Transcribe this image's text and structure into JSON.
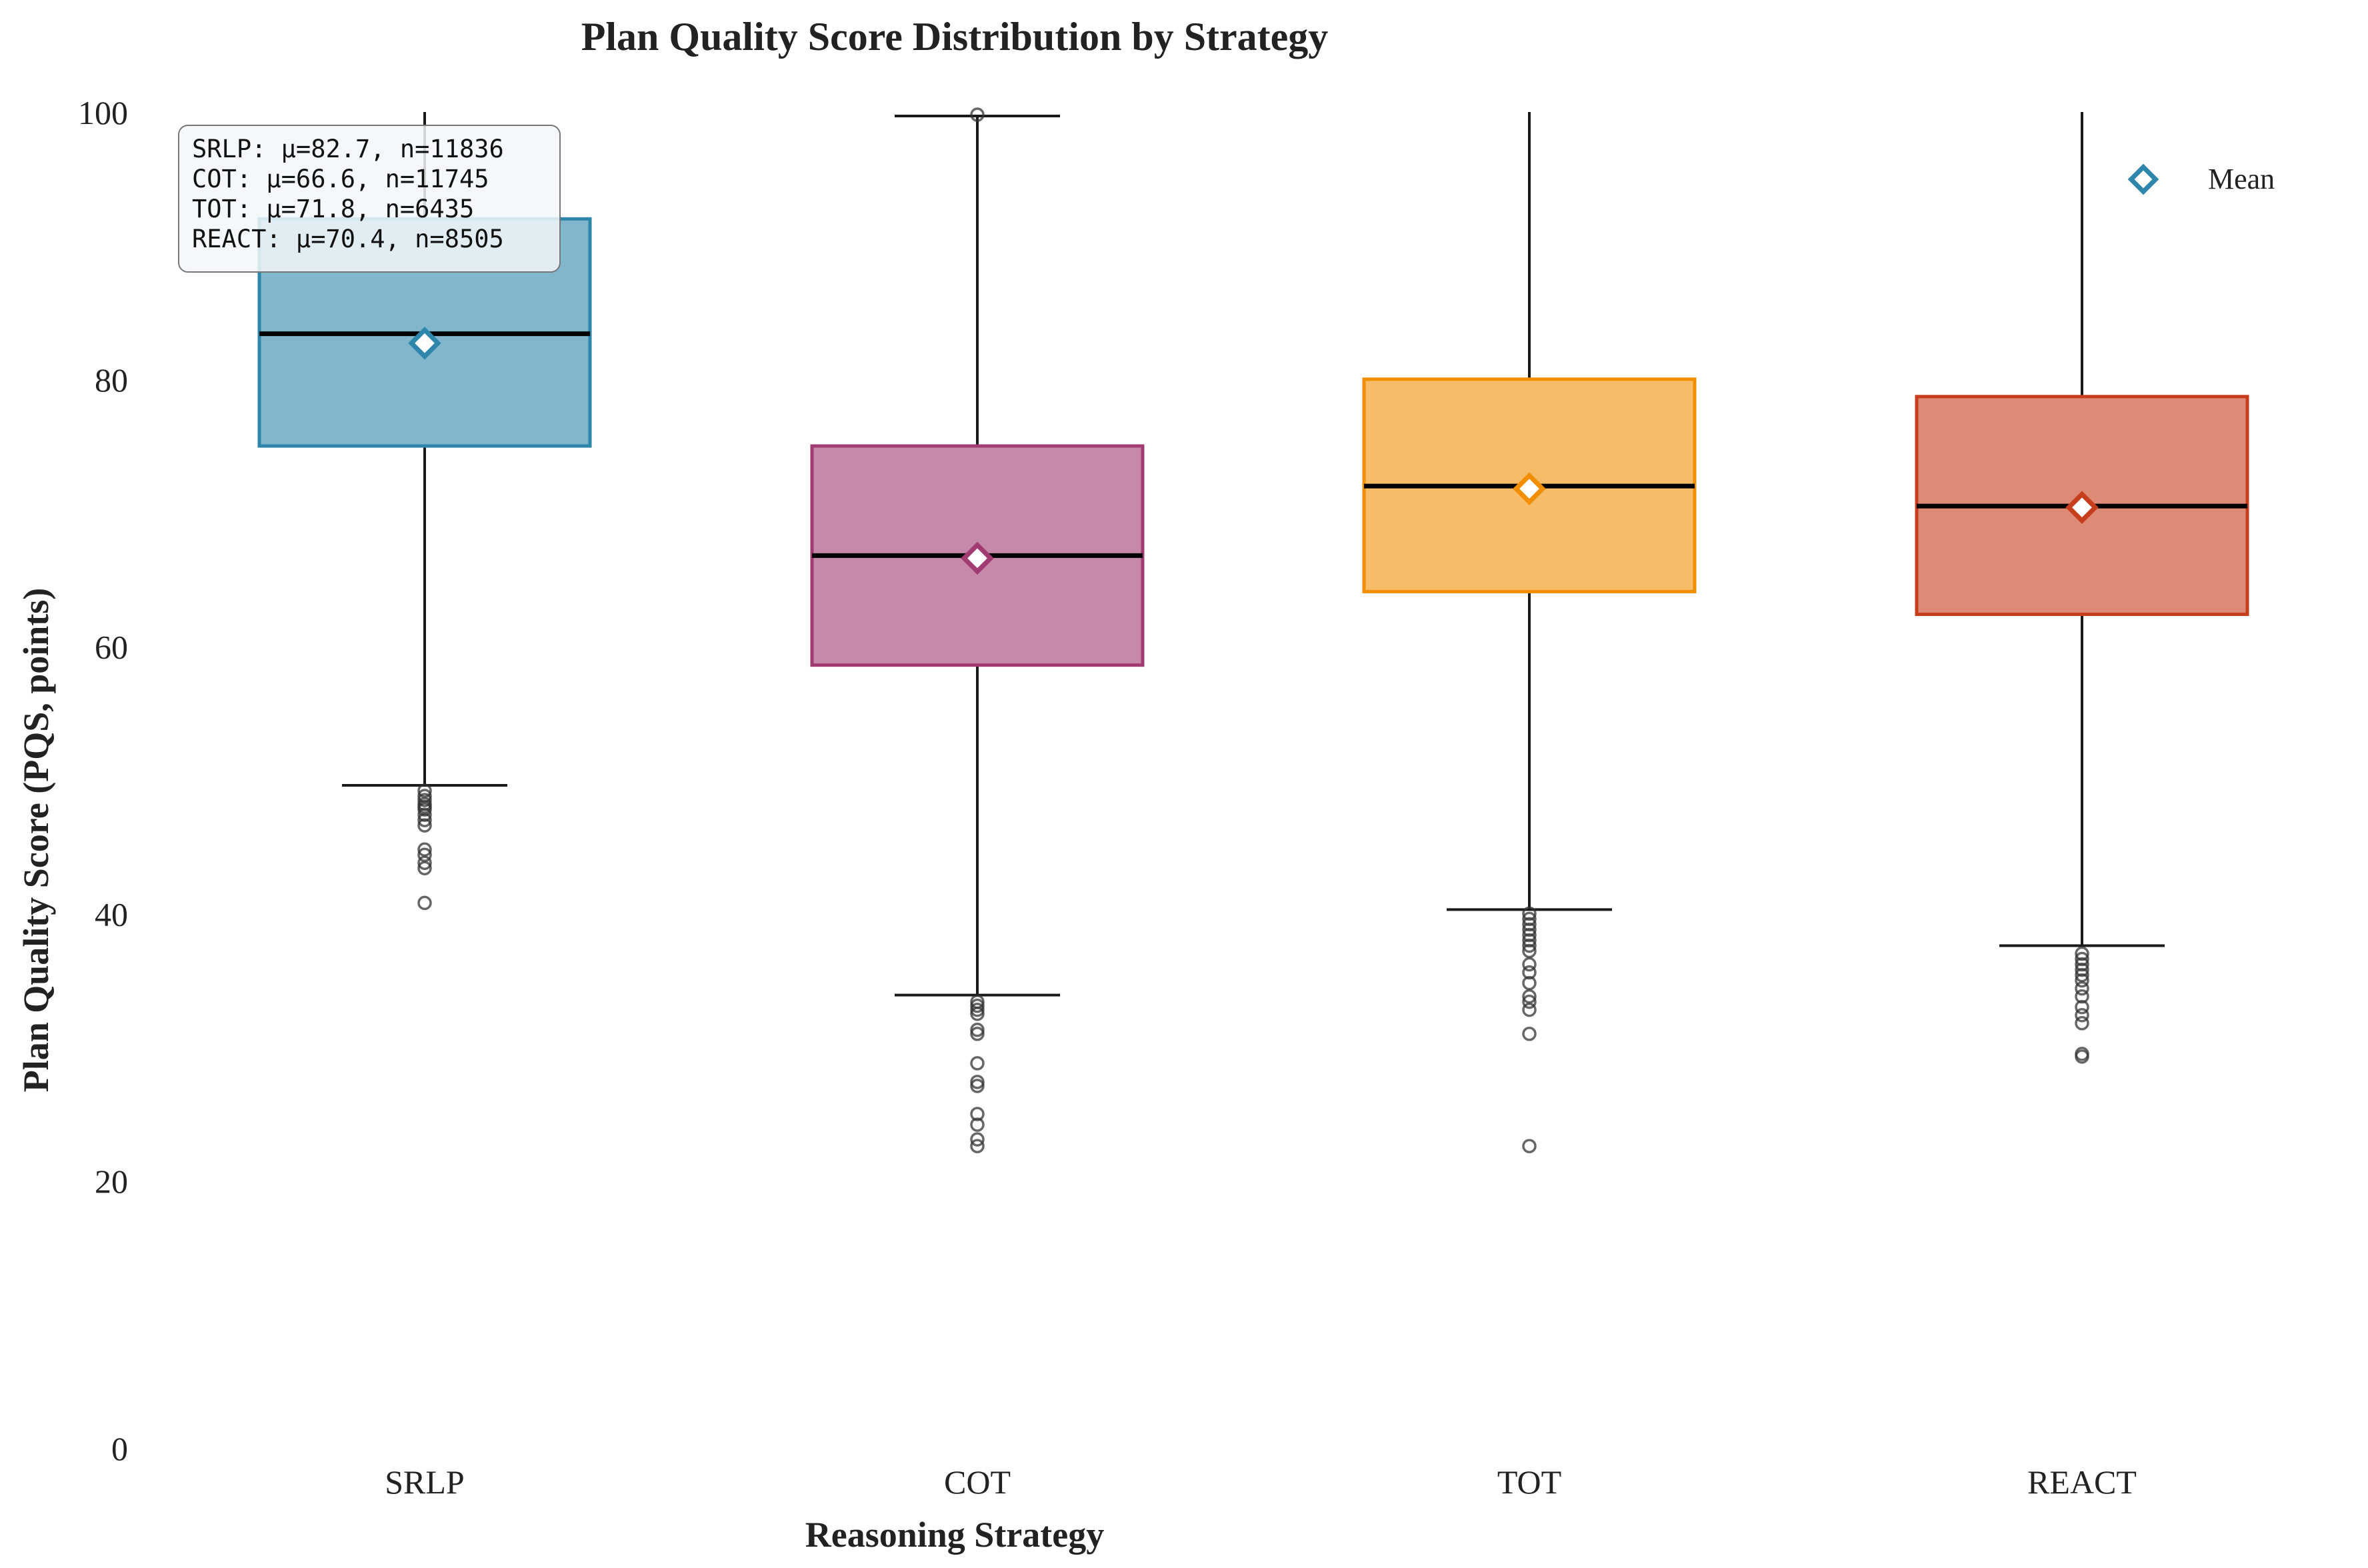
{
  "chart_data": {
    "type": "box",
    "title": "Plan Quality Score Distribution by Strategy",
    "xlabel": "Reasoning Strategy",
    "ylabel": "Plan Quality Score (PQS, points)",
    "ylim": [
      0,
      100
    ],
    "yticks": [
      "0",
      "20",
      "40",
      "60",
      "80",
      "100"
    ],
    "grid": false,
    "legend": {
      "position": "top-right",
      "entries": [
        {
          "label": "Mean",
          "marker": "diamond-open"
        }
      ]
    },
    "stats_box": {
      "position": "top-left",
      "lines": [
        "SRLP: μ=82.7, n=11836",
        "COT: μ=66.6, n=11745",
        "TOT: μ=71.8, n=6435",
        "REACT: μ=70.4, n=8505"
      ]
    },
    "categories": [
      "SRLP",
      "COT",
      "TOT",
      "REACT"
    ],
    "series": [
      {
        "category": "SRLP",
        "q1": 75.0,
        "median": 83.4,
        "q3": 92.0,
        "whisker_low": 49.6,
        "whisker_high": 100.0,
        "mean": 82.7,
        "n": 11836,
        "color": "#2e86ab",
        "outliers": [
          49.2,
          48.8,
          48.5,
          48.2,
          48.0,
          47.8,
          47.4,
          47.0,
          46.6,
          44.8,
          44.4,
          43.8,
          43.4,
          40.8
        ]
      },
      {
        "category": "COT",
        "q1": 58.6,
        "median": 66.8,
        "q3": 75.0,
        "whisker_low": 33.9,
        "whisker_high": 99.7,
        "mean": 66.6,
        "n": 11745,
        "color": "#a23b72",
        "outliers": [
          99.8,
          33.4,
          33.1,
          32.8,
          32.5,
          31.3,
          31.0,
          28.8,
          27.4,
          27.1,
          25.0,
          24.2,
          23.1,
          22.6
        ]
      },
      {
        "category": "TOT",
        "q1": 64.1,
        "median": 72.0,
        "q3": 80.0,
        "whisker_low": 40.3,
        "whisker_high": 100.0,
        "mean": 71.8,
        "n": 6435,
        "color": "#f18f01",
        "outliers": [
          40.0,
          39.6,
          39.2,
          38.8,
          38.4,
          38.0,
          37.6,
          37.2,
          36.2,
          35.6,
          34.8,
          33.8,
          33.4,
          32.8,
          31.0,
          22.6
        ]
      },
      {
        "category": "REACT",
        "q1": 62.4,
        "median": 70.5,
        "q3": 78.7,
        "whisker_low": 37.6,
        "whisker_high": 100.0,
        "mean": 70.4,
        "n": 8505,
        "color": "#c73e1d",
        "outliers": [
          37.0,
          36.6,
          36.2,
          35.8,
          35.4,
          35.0,
          34.4,
          33.8,
          33.0,
          32.4,
          31.8,
          29.5,
          29.3
        ]
      }
    ]
  }
}
